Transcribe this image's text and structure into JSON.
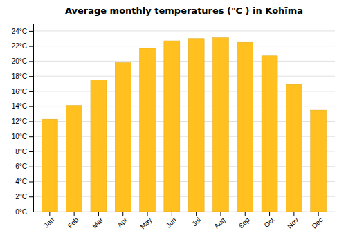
{
  "chart_data": {
    "type": "bar",
    "title": "Average monthly temperatures (°C ) in Kohīma",
    "categories": [
      "Jan",
      "Feb",
      "Mar",
      "Apr",
      "May",
      "Jun",
      "Jul",
      "Aug",
      "Sep",
      "Oct",
      "Nov",
      "Dec"
    ],
    "values": [
      12.3,
      14.1,
      17.5,
      19.8,
      21.7,
      22.7,
      23.0,
      23.1,
      22.5,
      20.7,
      16.9,
      13.5
    ],
    "color": "#FFC020",
    "ylim": [
      0,
      25
    ],
    "yticks": [
      {
        "value": 0,
        "label": "0°C"
      },
      {
        "value": 2,
        "label": "2°C"
      },
      {
        "value": 4,
        "label": "4°C"
      },
      {
        "value": 6,
        "label": "6°C"
      },
      {
        "value": 8,
        "label": "8°C"
      },
      {
        "value": 10,
        "label": "10°C"
      },
      {
        "value": 12,
        "label": "12°C"
      },
      {
        "value": 14,
        "label": "14°C"
      },
      {
        "value": 16,
        "label": "16°C"
      },
      {
        "value": 18,
        "label": "18°C"
      },
      {
        "value": 20,
        "label": "20°C"
      },
      {
        "value": 22,
        "label": "22°C"
      },
      {
        "value": 24,
        "label": "24°C"
      }
    ],
    "grid": true
  }
}
